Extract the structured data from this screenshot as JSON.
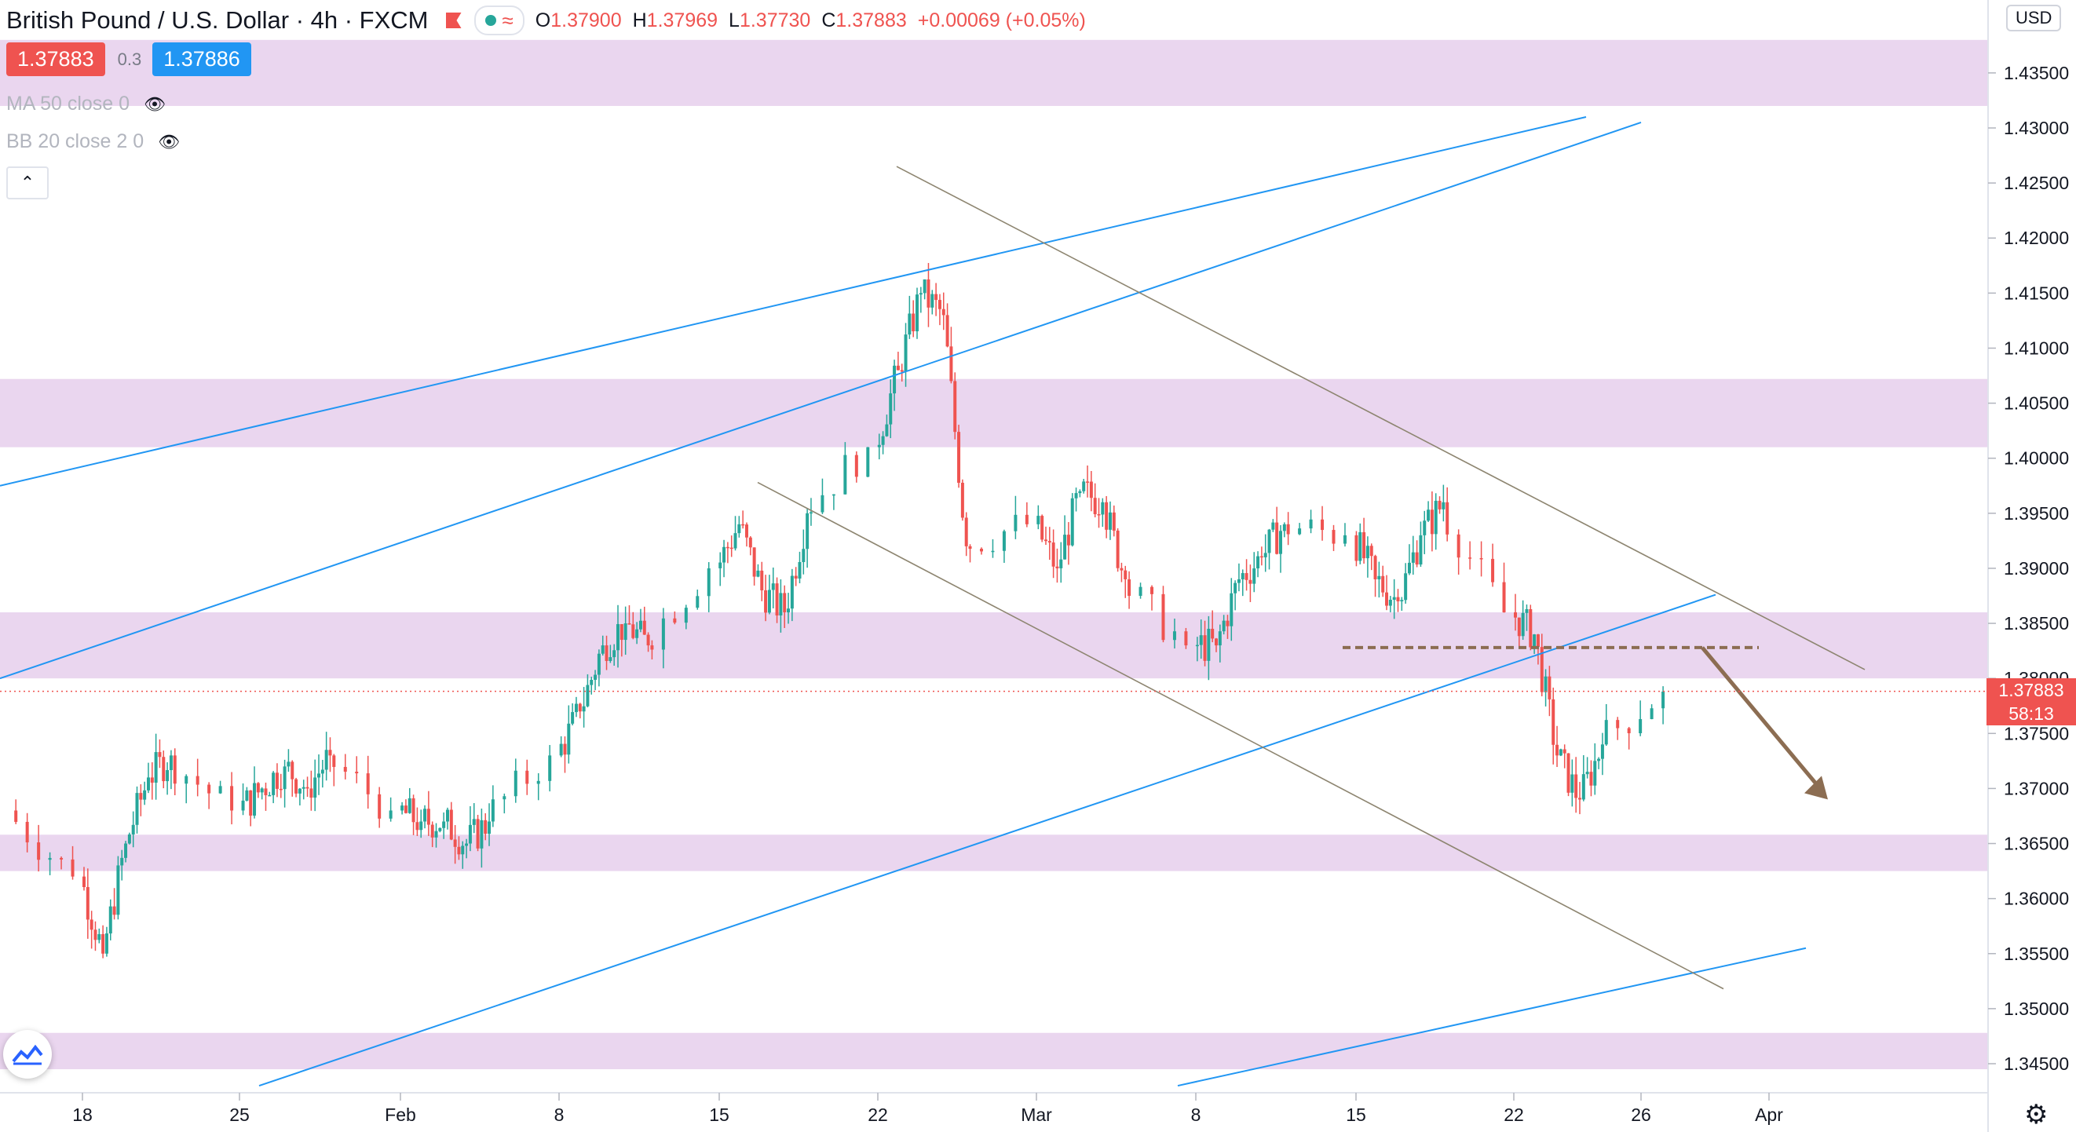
{
  "header": {
    "symbol_title": "British Pound / U.S. Dollar · 4h · FXCM",
    "wave_icon": "≈",
    "ohlc": {
      "o_label": "O",
      "o": "1.37900",
      "h_label": "H",
      "h": "1.37969",
      "l_label": "L",
      "l": "1.37730",
      "c_label": "C",
      "c": "1.37883",
      "change": "+0.00069 (+0.05%)"
    }
  },
  "trade": {
    "sell": "1.37883",
    "spread": "0.3",
    "buy": "1.37886"
  },
  "indicators": [
    {
      "label": "MA 50 close 0",
      "icon": "eye-hidden-icon"
    },
    {
      "label": "BB 20 close 2 0",
      "icon": "eye-hidden-icon"
    }
  ],
  "currency_button": "USD",
  "last_price": {
    "price": "1.37883",
    "countdown": "58:13"
  },
  "colors": {
    "up": "#26a69a",
    "down": "#ef5350",
    "zone": "#e1c4e8",
    "channel": "#2196f3",
    "trend": "#8d8570",
    "arrow": "#8c6d52"
  },
  "chart_data": {
    "type": "candlestick",
    "symbol": "GBPUSD",
    "timeframe": "4h",
    "x_ticks": [
      "18",
      "25",
      "Feb",
      "8",
      "15",
      "22",
      "Mar",
      "8",
      "15",
      "22",
      "26",
      "Apr"
    ],
    "y_ticks": [
      "1.43500",
      "1.43000",
      "1.42500",
      "1.42000",
      "1.41500",
      "1.41000",
      "1.40500",
      "1.40000",
      "1.39500",
      "1.39000",
      "1.38500",
      "1.38000",
      "1.37500",
      "1.37000",
      "1.36500",
      "1.36000",
      "1.35500",
      "1.35000",
      "1.34500"
    ],
    "ylim": [
      1.3425,
      1.4385
    ],
    "price_series_daily": [
      [
        "Jan 15",
        1.368
      ],
      [
        "Jan 18",
        1.362
      ],
      [
        "Jan 19",
        1.355
      ],
      [
        "Jan 20",
        1.365
      ],
      [
        "Jan 21",
        1.371
      ],
      [
        "Jan 22",
        1.373
      ],
      [
        "Jan 25",
        1.368
      ],
      [
        "Jan 26",
        1.37
      ],
      [
        "Jan 27",
        1.372
      ],
      [
        "Jan 28",
        1.37
      ],
      [
        "Jan 29",
        1.373
      ],
      [
        "Feb 1",
        1.368
      ],
      [
        "Feb 2",
        1.367
      ],
      [
        "Feb 3",
        1.367
      ],
      [
        "Feb 4",
        1.365
      ],
      [
        "Feb 5",
        1.367
      ],
      [
        "Feb 8",
        1.373
      ],
      [
        "Feb 9",
        1.377
      ],
      [
        "Feb 10",
        1.383
      ],
      [
        "Feb 11",
        1.385
      ],
      [
        "Feb 12",
        1.383
      ],
      [
        "Feb 15",
        1.39
      ],
      [
        "Feb 16",
        1.394
      ],
      [
        "Feb 17",
        1.388
      ],
      [
        "Feb 18",
        1.386
      ],
      [
        "Feb 19",
        1.395
      ],
      [
        "Feb 22",
        1.401
      ],
      [
        "Feb 23",
        1.408
      ],
      [
        "Feb 24",
        1.415
      ],
      [
        "Feb 25",
        1.413
      ],
      [
        "Feb 26",
        1.392
      ],
      [
        "Mar 1",
        1.394
      ],
      [
        "Mar 2",
        1.39
      ],
      [
        "Mar 3",
        1.397
      ],
      [
        "Mar 4",
        1.396
      ],
      [
        "Mar 5",
        1.389
      ],
      [
        "Mar 8",
        1.383
      ],
      [
        "Mar 9",
        1.383
      ],
      [
        "Mar 10",
        1.389
      ],
      [
        "Mar 11",
        1.391
      ],
      [
        "Mar 12",
        1.394
      ],
      [
        "Mar 15",
        1.393
      ],
      [
        "Mar 16",
        1.389
      ],
      [
        "Mar 17",
        1.387
      ],
      [
        "Mar 18",
        1.393
      ],
      [
        "Mar 19",
        1.396
      ],
      [
        "Mar 22",
        1.386
      ],
      [
        "Mar 23",
        1.384
      ],
      [
        "Mar 24",
        1.373
      ],
      [
        "Mar 25",
        1.369
      ],
      [
        "Mar 26",
        1.374
      ],
      [
        "Mar 29",
        1.3788
      ]
    ],
    "zones": [
      [
        1.432,
        1.438
      ],
      [
        1.401,
        1.4072
      ],
      [
        1.38,
        1.386
      ],
      [
        1.3625,
        1.3658
      ],
      [
        1.3445,
        1.3478
      ]
    ],
    "resistance_dashed": 1.3828,
    "arrow": "bearish projection toward 1.3690"
  }
}
